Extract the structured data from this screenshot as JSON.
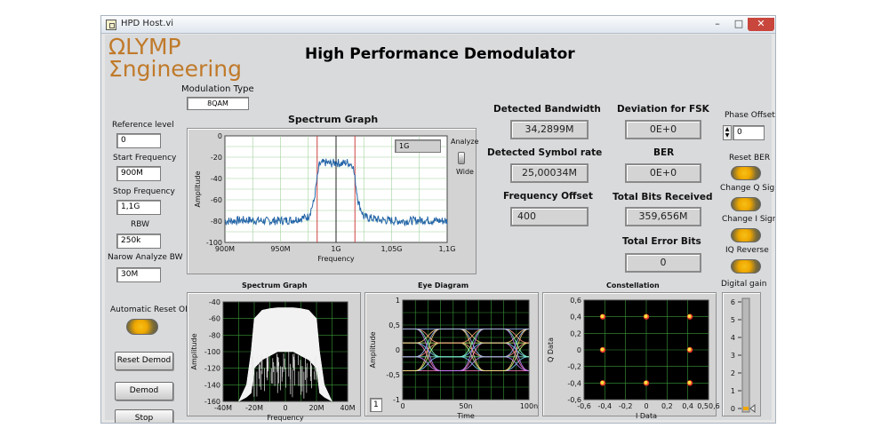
{
  "window": {
    "title": "HPD Host.vi",
    "min": "–",
    "max": "□",
    "close": "✕"
  },
  "logo": {
    "line1": "ΩLYMP",
    "line2": "Σngineering"
  },
  "app_title": "High Performance Demodulator",
  "modulation": {
    "label": "Modulation Type",
    "value": "8QAM"
  },
  "left_controls": [
    {
      "label": "Reference level",
      "value": "0"
    },
    {
      "label": "Start Frequency",
      "value": "900M"
    },
    {
      "label": "Stop Frequency",
      "value": "1,1G"
    },
    {
      "label": "RBW",
      "value": "250k"
    },
    {
      "label": "Narow Analyze BW",
      "value": "30M"
    }
  ],
  "auto_reset": {
    "label": "Automatic Reset ON"
  },
  "buttons": {
    "reset_demod": "Reset Demod",
    "demod": "Demod",
    "stop": "Stop"
  },
  "indicators": {
    "detected_bandwidth": {
      "label": "Detected Bandwidth",
      "value": "34,2899M"
    },
    "detected_symbol_rate": {
      "label": "Detected Symbol rate",
      "value": "25,00034M"
    },
    "frequency_offset": {
      "label": "Frequency Offset",
      "value": "400"
    },
    "deviation_fsk": {
      "label": "Deviation for FSK",
      "value": "0E+0"
    },
    "ber": {
      "label": "BER",
      "value": "0E+0"
    },
    "total_bits": {
      "label": "Total Bits Received",
      "value": "359,656M"
    },
    "total_error_bits": {
      "label": "Total Error Bits",
      "value": "0"
    }
  },
  "right_controls": {
    "phase_offset": {
      "label": "Phase Offset",
      "value": "0"
    },
    "reset_ber": "Reset BER",
    "change_q_sign": "Change Q Sign",
    "change_i_sign": "Change I Sign",
    "iq_reverse": "IQ Reverse",
    "digital_gain": {
      "label": "Digital gain",
      "ticks": [
        "6",
        "5",
        "4",
        "3",
        "2",
        "1",
        "0"
      ],
      "value": 0
    }
  },
  "spectrum_main": {
    "title": "Spectrum Graph",
    "span_value": "1G",
    "analyze_label": "Analyze",
    "wide_label": "Wide"
  },
  "eye_index": "1",
  "chart_data": [
    {
      "type": "line",
      "title": "Spectrum Graph",
      "xlabel": "Frequency",
      "ylabel": "Amplitude",
      "x_ticks": [
        "900M",
        "950M",
        "1G",
        "1,05G",
        "1,1G"
      ],
      "y_ticks": [
        "0",
        "-20",
        "-40",
        "-60",
        "-80",
        "-100"
      ],
      "xlim": [
        900,
        1100
      ],
      "ylim": [
        -100,
        0
      ],
      "markers_x": [
        983,
        1000,
        1017
      ],
      "series": [
        {
          "x": [
            900,
            920,
            940,
            960,
            975,
            980,
            983,
            985,
            990,
            995,
            1000,
            1005,
            1010,
            1015,
            1017,
            1020,
            1025,
            1040,
            1060,
            1080,
            1100
          ],
          "y": [
            -80,
            -79,
            -80,
            -79,
            -76,
            -62,
            -40,
            -27,
            -25,
            -26,
            -25,
            -26,
            -25,
            -27,
            -40,
            -62,
            -76,
            -79,
            -80,
            -79,
            -80
          ]
        }
      ]
    },
    {
      "type": "area",
      "title": "Spectrum Graph",
      "xlabel": "Frequency",
      "ylabel": "Amplitude",
      "x_ticks": [
        "-40M",
        "-20M",
        "0",
        "20M",
        "40M"
      ],
      "y_ticks": [
        "-40",
        "-60",
        "-80",
        "-100",
        "-120",
        "-140",
        "-160"
      ],
      "xlim": [
        -40,
        40
      ],
      "ylim": [
        -160,
        -40
      ],
      "series": [
        {
          "x": [
            -30,
            -25,
            -22,
            -20,
            -15,
            -10,
            -5,
            0,
            5,
            10,
            15,
            20,
            22,
            25,
            30
          ],
          "upper": [
            -160,
            -140,
            -100,
            -60,
            -50,
            -48,
            -47,
            -47,
            -47,
            -48,
            -50,
            -60,
            -100,
            -140,
            -160
          ],
          "lower": [
            -160,
            -155,
            -150,
            -120,
            -110,
            -105,
            -100,
            -100,
            -100,
            -105,
            -110,
            -120,
            -150,
            -155,
            -160
          ]
        }
      ]
    },
    {
      "type": "line",
      "title": "Eye Diagram",
      "xlabel": "Time",
      "ylabel": "Amplitude",
      "x_ticks": [
        "0",
        "50n",
        "100n"
      ],
      "y_ticks": [
        "1",
        "0,5",
        "0",
        "-0,5",
        "-1"
      ],
      "xlim": [
        0,
        100
      ],
      "ylim": [
        -1,
        1
      ],
      "levels": [
        -0.42,
        -0.14,
        0.14,
        0.42
      ]
    },
    {
      "type": "scatter",
      "title": "Constellation",
      "xlabel": "I Data",
      "ylabel": "Q Data",
      "x_ticks": [
        "-0,6",
        "-0,4",
        "-0,2",
        "0",
        "0,2",
        "0,4",
        "0,50,6"
      ],
      "y_ticks": [
        "0,6",
        "0,4",
        "0,2",
        "0",
        "-0,2",
        "-0,4",
        "-0,6"
      ],
      "xlim": [
        -0.6,
        0.6
      ],
      "ylim": [
        -0.6,
        0.6
      ],
      "points": [
        [
          -0.42,
          0.4
        ],
        [
          0,
          0.4
        ],
        [
          0.42,
          0.4
        ],
        [
          -0.42,
          0
        ],
        [
          0.42,
          0
        ],
        [
          -0.42,
          -0.4
        ],
        [
          0,
          -0.4
        ],
        [
          0.42,
          -0.4
        ]
      ]
    }
  ],
  "colors": {
    "trace": "#2566a8",
    "marker": "#d04040",
    "led": "#f0a800"
  }
}
